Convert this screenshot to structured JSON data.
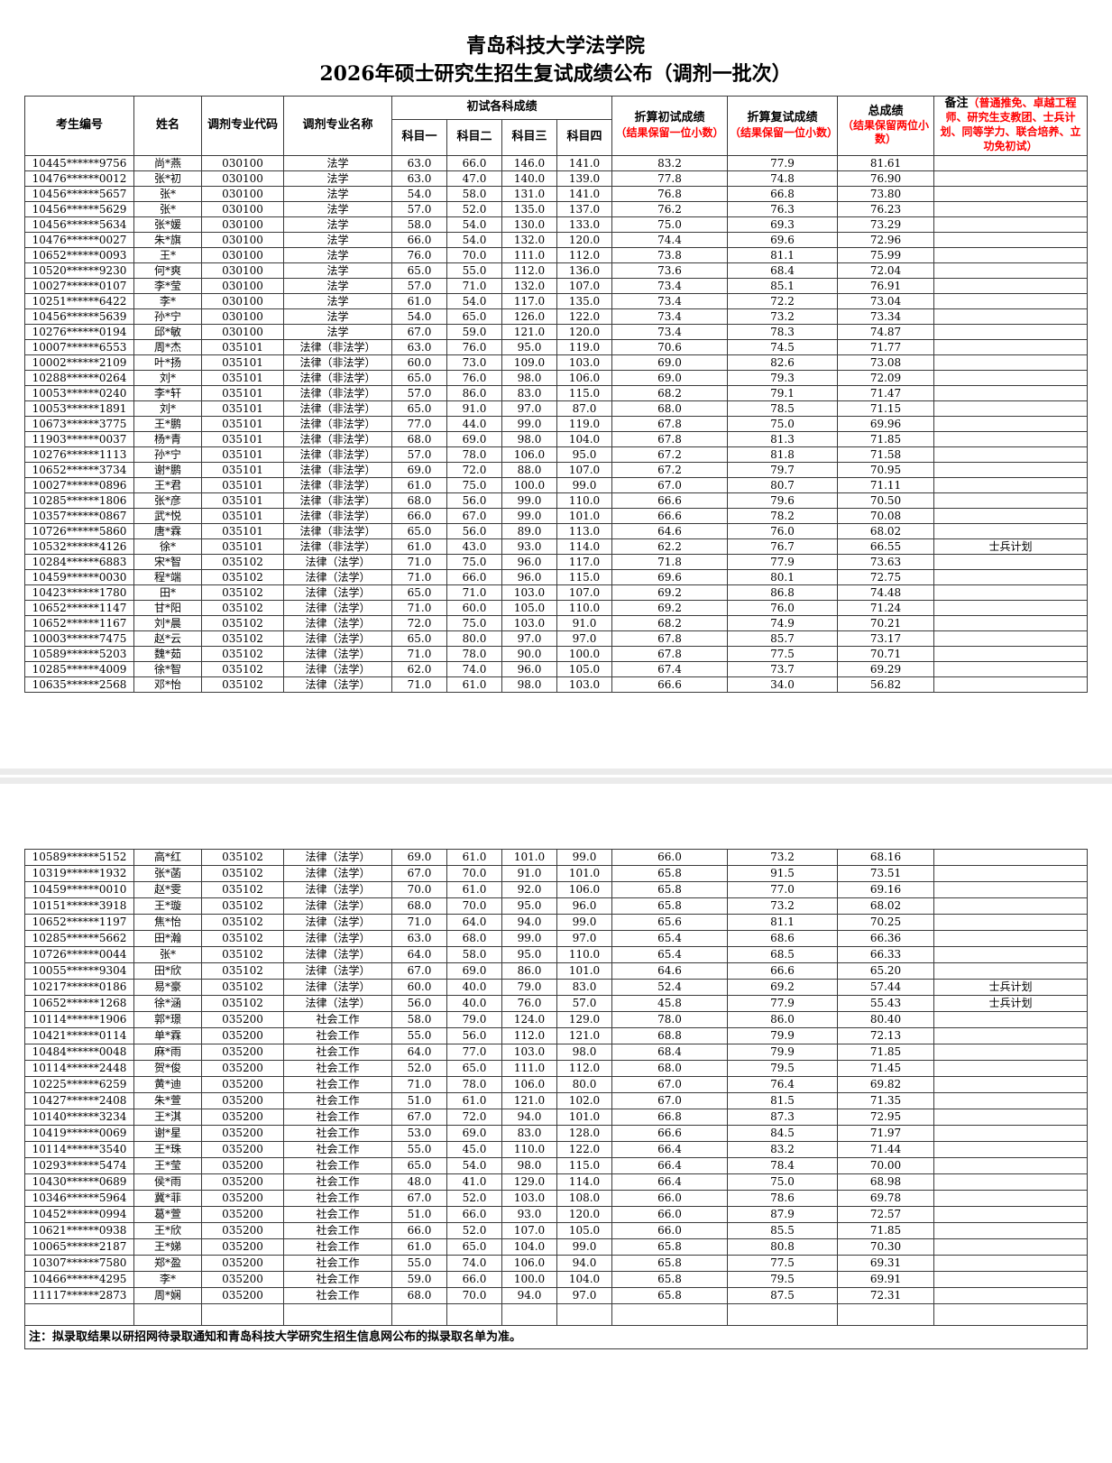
{
  "title": {
    "line1": "青岛科技大学法学院",
    "line2": "2026年硕士研究生招生复试成绩公布（调剂一批次）"
  },
  "colors": {
    "note_red": "#ff0000",
    "text": "#000000",
    "border": "#3a3a3a"
  },
  "table": {
    "headers": {
      "candidate_id": "考生编号",
      "name": "姓名",
      "major_code": "调剂专业代码",
      "major_name": "调剂专业名称",
      "initial_group": "初试各科成绩",
      "subject1": "科目一",
      "subject2": "科目二",
      "subject3": "科目三",
      "subject4": "科目四",
      "converted_initial": "折算初试成绩",
      "converted_initial_note": "（结果保留一位小数）",
      "converted_retest": "折算复试成绩",
      "converted_retest_note": "（结果保留一位小数）",
      "total": "总成绩",
      "total_note": "（结果保留两位小数）",
      "remark": "备注",
      "remark_note": "（普通推免、卓越工程师、研究生支教团、士兵计划、同等学力、联合培养、立功免初试）"
    },
    "page1_rows": [
      [
        "10445******9756",
        "尚*燕",
        "030100",
        "法学",
        "63.0",
        "66.0",
        "146.0",
        "141.0",
        "83.2",
        "77.9",
        "81.61",
        ""
      ],
      [
        "10476******0012",
        "张*初",
        "030100",
        "法学",
        "63.0",
        "47.0",
        "140.0",
        "139.0",
        "77.8",
        "74.8",
        "76.90",
        ""
      ],
      [
        "10456******5657",
        "张*",
        "030100",
        "法学",
        "54.0",
        "58.0",
        "131.0",
        "141.0",
        "76.8",
        "66.8",
        "73.80",
        ""
      ],
      [
        "10456******5629",
        "张*",
        "030100",
        "法学",
        "57.0",
        "52.0",
        "135.0",
        "137.0",
        "76.2",
        "76.3",
        "76.23",
        ""
      ],
      [
        "10456******5634",
        "张*媛",
        "030100",
        "法学",
        "58.0",
        "54.0",
        "130.0",
        "133.0",
        "75.0",
        "69.3",
        "73.29",
        ""
      ],
      [
        "10476******0027",
        "朱*旗",
        "030100",
        "法学",
        "66.0",
        "54.0",
        "132.0",
        "120.0",
        "74.4",
        "69.6",
        "72.96",
        ""
      ],
      [
        "10652******0093",
        "王*",
        "030100",
        "法学",
        "76.0",
        "70.0",
        "111.0",
        "112.0",
        "73.8",
        "81.1",
        "75.99",
        ""
      ],
      [
        "10520******9230",
        "何*爽",
        "030100",
        "法学",
        "65.0",
        "55.0",
        "112.0",
        "136.0",
        "73.6",
        "68.4",
        "72.04",
        ""
      ],
      [
        "10027******0107",
        "李*莹",
        "030100",
        "法学",
        "57.0",
        "71.0",
        "132.0",
        "107.0",
        "73.4",
        "85.1",
        "76.91",
        ""
      ],
      [
        "10251******6422",
        "李*",
        "030100",
        "法学",
        "61.0",
        "54.0",
        "117.0",
        "135.0",
        "73.4",
        "72.2",
        "73.04",
        ""
      ],
      [
        "10456******5639",
        "孙*宁",
        "030100",
        "法学",
        "54.0",
        "65.0",
        "126.0",
        "122.0",
        "73.4",
        "73.2",
        "73.34",
        ""
      ],
      [
        "10276******0194",
        "邱*敏",
        "030100",
        "法学",
        "67.0",
        "59.0",
        "121.0",
        "120.0",
        "73.4",
        "78.3",
        "74.87",
        ""
      ],
      [
        "10007******6553",
        "周*杰",
        "035101",
        "法律（非法学）",
        "63.0",
        "76.0",
        "95.0",
        "119.0",
        "70.6",
        "74.5",
        "71.77",
        ""
      ],
      [
        "10002******2109",
        "叶*扬",
        "035101",
        "法律（非法学）",
        "60.0",
        "73.0",
        "109.0",
        "103.0",
        "69.0",
        "82.6",
        "73.08",
        ""
      ],
      [
        "10288******0264",
        "刘*",
        "035101",
        "法律（非法学）",
        "65.0",
        "76.0",
        "98.0",
        "106.0",
        "69.0",
        "79.3",
        "72.09",
        ""
      ],
      [
        "10053******0240",
        "李*轩",
        "035101",
        "法律（非法学）",
        "57.0",
        "86.0",
        "83.0",
        "115.0",
        "68.2",
        "79.1",
        "71.47",
        ""
      ],
      [
        "10053******1891",
        "刘*",
        "035101",
        "法律（非法学）",
        "65.0",
        "91.0",
        "97.0",
        "87.0",
        "68.0",
        "78.5",
        "71.15",
        ""
      ],
      [
        "10673******3775",
        "王*鹏",
        "035101",
        "法律（非法学）",
        "77.0",
        "44.0",
        "99.0",
        "119.0",
        "67.8",
        "75.0",
        "69.96",
        ""
      ],
      [
        "11903******0037",
        "杨*青",
        "035101",
        "法律（非法学）",
        "68.0",
        "69.0",
        "98.0",
        "104.0",
        "67.8",
        "81.3",
        "71.85",
        ""
      ],
      [
        "10276******1113",
        "孙*宁",
        "035101",
        "法律（非法学）",
        "57.0",
        "78.0",
        "106.0",
        "95.0",
        "67.2",
        "81.8",
        "71.58",
        ""
      ],
      [
        "10652******3734",
        "谢*鹏",
        "035101",
        "法律（非法学）",
        "69.0",
        "72.0",
        "88.0",
        "107.0",
        "67.2",
        "79.7",
        "70.95",
        ""
      ],
      [
        "10027******0896",
        "王*君",
        "035101",
        "法律（非法学）",
        "61.0",
        "75.0",
        "100.0",
        "99.0",
        "67.0",
        "80.7",
        "71.11",
        ""
      ],
      [
        "10285******1806",
        "张*彦",
        "035101",
        "法律（非法学）",
        "68.0",
        "56.0",
        "99.0",
        "110.0",
        "66.6",
        "79.6",
        "70.50",
        ""
      ],
      [
        "10357******0867",
        "武*悦",
        "035101",
        "法律（非法学）",
        "66.0",
        "67.0",
        "99.0",
        "101.0",
        "66.6",
        "78.2",
        "70.08",
        ""
      ],
      [
        "10726******5860",
        "唐*霖",
        "035101",
        "法律（非法学）",
        "65.0",
        "56.0",
        "89.0",
        "113.0",
        "64.6",
        "76.0",
        "68.02",
        ""
      ],
      [
        "10532******4126",
        "徐*",
        "035101",
        "法律（非法学）",
        "61.0",
        "43.0",
        "93.0",
        "114.0",
        "62.2",
        "76.7",
        "66.55",
        "士兵计划"
      ],
      [
        "10284******6883",
        "宋*智",
        "035102",
        "法律（法学）",
        "71.0",
        "75.0",
        "96.0",
        "117.0",
        "71.8",
        "77.9",
        "73.63",
        ""
      ],
      [
        "10459******0030",
        "程*端",
        "035102",
        "法律（法学）",
        "71.0",
        "66.0",
        "96.0",
        "115.0",
        "69.6",
        "80.1",
        "72.75",
        ""
      ],
      [
        "10423******1780",
        "田*",
        "035102",
        "法律（法学）",
        "65.0",
        "71.0",
        "103.0",
        "107.0",
        "69.2",
        "86.8",
        "74.48",
        ""
      ],
      [
        "10652******1147",
        "甘*阳",
        "035102",
        "法律（法学）",
        "71.0",
        "60.0",
        "105.0",
        "110.0",
        "69.2",
        "76.0",
        "71.24",
        ""
      ],
      [
        "10652******1167",
        "刘*晨",
        "035102",
        "法律（法学）",
        "72.0",
        "75.0",
        "103.0",
        "91.0",
        "68.2",
        "74.9",
        "70.21",
        ""
      ],
      [
        "10003******7475",
        "赵*云",
        "035102",
        "法律（法学）",
        "65.0",
        "80.0",
        "97.0",
        "97.0",
        "67.8",
        "85.7",
        "73.17",
        ""
      ],
      [
        "10589******5203",
        "魏*茹",
        "035102",
        "法律（法学）",
        "71.0",
        "78.0",
        "90.0",
        "100.0",
        "67.8",
        "77.5",
        "70.71",
        ""
      ],
      [
        "10285******4009",
        "徐*智",
        "035102",
        "法律（法学）",
        "62.0",
        "74.0",
        "96.0",
        "105.0",
        "67.4",
        "73.7",
        "69.29",
        ""
      ],
      [
        "10635******2568",
        "邓*怡",
        "035102",
        "法律（法学）",
        "71.0",
        "61.0",
        "98.0",
        "103.0",
        "66.6",
        "34.0",
        "56.82",
        ""
      ]
    ],
    "page2_rows": [
      [
        "10589******5152",
        "高*红",
        "035102",
        "法律（法学）",
        "69.0",
        "61.0",
        "101.0",
        "99.0",
        "66.0",
        "73.2",
        "68.16",
        ""
      ],
      [
        "10319******1932",
        "张*菡",
        "035102",
        "法律（法学）",
        "67.0",
        "70.0",
        "91.0",
        "101.0",
        "65.8",
        "91.5",
        "73.51",
        ""
      ],
      [
        "10459******0010",
        "赵*雯",
        "035102",
        "法律（法学）",
        "70.0",
        "61.0",
        "92.0",
        "106.0",
        "65.8",
        "77.0",
        "69.16",
        ""
      ],
      [
        "10151******3918",
        "王*璇",
        "035102",
        "法律（法学）",
        "68.0",
        "70.0",
        "95.0",
        "96.0",
        "65.8",
        "73.2",
        "68.02",
        ""
      ],
      [
        "10652******1197",
        "焦*怡",
        "035102",
        "法律（法学）",
        "71.0",
        "64.0",
        "94.0",
        "99.0",
        "65.6",
        "81.1",
        "70.25",
        ""
      ],
      [
        "10285******5662",
        "田*瀚",
        "035102",
        "法律（法学）",
        "63.0",
        "68.0",
        "99.0",
        "97.0",
        "65.4",
        "68.6",
        "66.36",
        ""
      ],
      [
        "10726******0044",
        "张*",
        "035102",
        "法律（法学）",
        "64.0",
        "58.0",
        "95.0",
        "110.0",
        "65.4",
        "68.5",
        "66.33",
        ""
      ],
      [
        "10055******9304",
        "田*欣",
        "035102",
        "法律（法学）",
        "67.0",
        "69.0",
        "86.0",
        "101.0",
        "64.6",
        "66.6",
        "65.20",
        ""
      ],
      [
        "10217******0186",
        "易*豪",
        "035102",
        "法律（法学）",
        "60.0",
        "40.0",
        "79.0",
        "83.0",
        "52.4",
        "69.2",
        "57.44",
        "士兵计划"
      ],
      [
        "10652******1268",
        "徐*涵",
        "035102",
        "法律（法学）",
        "56.0",
        "40.0",
        "76.0",
        "57.0",
        "45.8",
        "77.9",
        "55.43",
        "士兵计划"
      ],
      [
        "10114******1906",
        "郭*璟",
        "035200",
        "社会工作",
        "58.0",
        "79.0",
        "124.0",
        "129.0",
        "78.0",
        "86.0",
        "80.40",
        ""
      ],
      [
        "10421******0114",
        "单*霖",
        "035200",
        "社会工作",
        "55.0",
        "56.0",
        "112.0",
        "121.0",
        "68.8",
        "79.9",
        "72.13",
        ""
      ],
      [
        "10484******0048",
        "麻*雨",
        "035200",
        "社会工作",
        "64.0",
        "77.0",
        "103.0",
        "98.0",
        "68.4",
        "79.9",
        "71.85",
        ""
      ],
      [
        "10114******2448",
        "贺*俊",
        "035200",
        "社会工作",
        "52.0",
        "65.0",
        "111.0",
        "112.0",
        "68.0",
        "79.5",
        "71.45",
        ""
      ],
      [
        "10225******6259",
        "黄*迪",
        "035200",
        "社会工作",
        "71.0",
        "78.0",
        "106.0",
        "80.0",
        "67.0",
        "76.4",
        "69.82",
        ""
      ],
      [
        "10427******2408",
        "朱*萱",
        "035200",
        "社会工作",
        "51.0",
        "61.0",
        "121.0",
        "102.0",
        "67.0",
        "81.5",
        "71.35",
        ""
      ],
      [
        "10140******3234",
        "王*淇",
        "035200",
        "社会工作",
        "67.0",
        "72.0",
        "94.0",
        "101.0",
        "66.8",
        "87.3",
        "72.95",
        ""
      ],
      [
        "10419******0069",
        "谢*星",
        "035200",
        "社会工作",
        "53.0",
        "69.0",
        "83.0",
        "128.0",
        "66.6",
        "84.5",
        "71.97",
        ""
      ],
      [
        "10114******3540",
        "王*珠",
        "035200",
        "社会工作",
        "55.0",
        "45.0",
        "110.0",
        "122.0",
        "66.4",
        "83.2",
        "71.44",
        ""
      ],
      [
        "10293******5474",
        "王*莹",
        "035200",
        "社会工作",
        "65.0",
        "54.0",
        "98.0",
        "115.0",
        "66.4",
        "78.4",
        "70.00",
        ""
      ],
      [
        "10430******0689",
        "侯*雨",
        "035200",
        "社会工作",
        "48.0",
        "41.0",
        "129.0",
        "114.0",
        "66.4",
        "75.0",
        "68.98",
        ""
      ],
      [
        "10346******5964",
        "冀*菲",
        "035200",
        "社会工作",
        "67.0",
        "52.0",
        "103.0",
        "108.0",
        "66.0",
        "78.6",
        "69.78",
        ""
      ],
      [
        "10452******0994",
        "葛*萱",
        "035200",
        "社会工作",
        "51.0",
        "66.0",
        "93.0",
        "120.0",
        "66.0",
        "87.9",
        "72.57",
        ""
      ],
      [
        "10621******0938",
        "王*欣",
        "035200",
        "社会工作",
        "66.0",
        "52.0",
        "107.0",
        "105.0",
        "66.0",
        "85.5",
        "71.85",
        ""
      ],
      [
        "10065******2187",
        "王*娣",
        "035200",
        "社会工作",
        "61.0",
        "65.0",
        "104.0",
        "99.0",
        "65.8",
        "80.8",
        "70.30",
        ""
      ],
      [
        "10307******7580",
        "郑*盈",
        "035200",
        "社会工作",
        "55.0",
        "74.0",
        "106.0",
        "94.0",
        "65.8",
        "77.5",
        "69.31",
        ""
      ],
      [
        "10466******4295",
        "李*",
        "035200",
        "社会工作",
        "59.0",
        "66.0",
        "100.0",
        "104.0",
        "65.8",
        "79.5",
        "69.91",
        ""
      ],
      [
        "11117******2873",
        "周*娴",
        "035200",
        "社会工作",
        "68.0",
        "70.0",
        "94.0",
        "97.0",
        "65.8",
        "87.5",
        "72.31",
        ""
      ]
    ]
  },
  "footer_note": "注：拟录取结果以研招网待录取通知和青岛科技大学研究生招生信息网公布的拟录取名单为准。"
}
